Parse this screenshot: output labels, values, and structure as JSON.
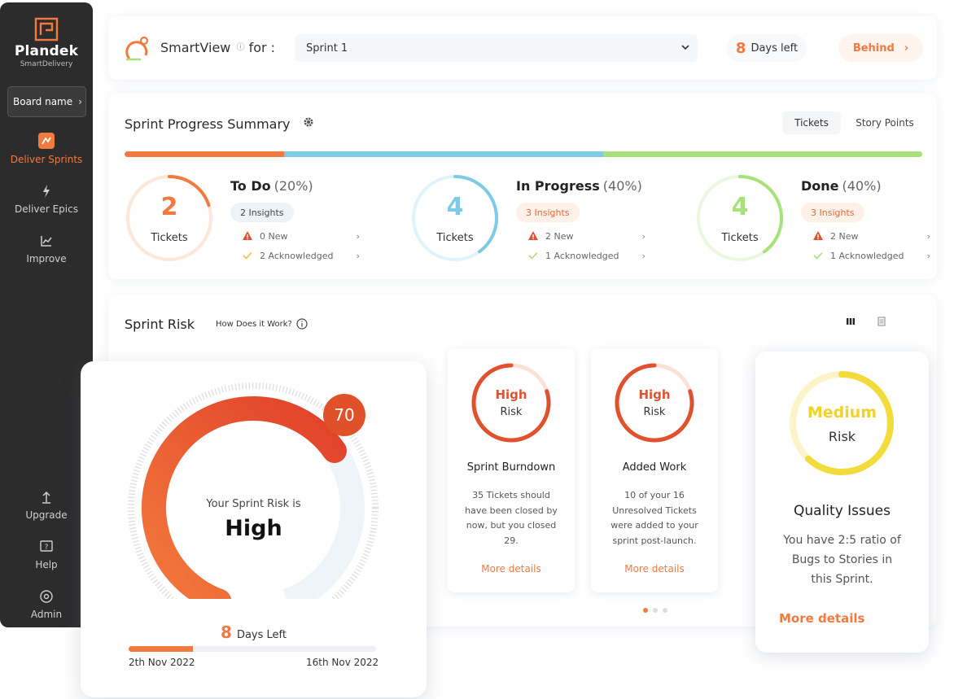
{
  "sidebar": {
    "logo_name": "Plandek",
    "logo_sub": "SmartDelivery",
    "board_button": "Board name",
    "items": [
      {
        "label": "Deliver Sprints",
        "icon": "sprint-icon",
        "active": true
      },
      {
        "label": "Deliver Epics",
        "icon": "lightning-icon",
        "active": false
      },
      {
        "label": "Improve",
        "icon": "chart-icon",
        "active": false
      }
    ],
    "bottom_items": [
      {
        "label": "Upgrade",
        "icon": "upgrade-icon"
      },
      {
        "label": "Help",
        "icon": "help-icon"
      },
      {
        "label": "Admin",
        "icon": "admin-icon"
      }
    ]
  },
  "header": {
    "title": "SmartView",
    "for_label": "for :",
    "sprint_selected": "Sprint 1",
    "days_left_num": "8",
    "days_left_label": "Days left",
    "status": "Behind"
  },
  "summary": {
    "title": "Sprint Progress Summary",
    "toggle_tickets": "Tickets",
    "toggle_points": "Story Points",
    "segments": [
      {
        "fraction": 0.2,
        "color": "#f07a3f"
      },
      {
        "fraction": 0.4,
        "color": "#7fcbe6"
      },
      {
        "fraction": 0.4,
        "color": "#a8e07a"
      }
    ],
    "statuses": [
      {
        "count": "2",
        "unit": "Tickets",
        "title": "To Do",
        "pct": "(20%)",
        "color": "#f07a3f",
        "track": "#fde6da",
        "arc": 0.2,
        "insights": "2 Insights",
        "insight_style": "neutral",
        "new": "0 New",
        "ack": "2 Acknowledged"
      },
      {
        "count": "4",
        "unit": "Tickets",
        "title": "In Progress",
        "pct": "(40%)",
        "color": "#7fcbe6",
        "track": "#e1f3fa",
        "arc": 0.4,
        "insights": "3 Insights",
        "insight_style": "warn",
        "new": "2 New",
        "ack": "1 Acknowledged"
      },
      {
        "count": "4",
        "unit": "Tickets",
        "title": "Done",
        "pct": "(40%)",
        "color": "#a8e07a",
        "track": "#ebf8e1",
        "arc": 0.4,
        "insights": "3 Insights",
        "insight_style": "warn",
        "new": "2 New",
        "ack": "1 Acknowledged"
      }
    ]
  },
  "risk": {
    "title": "Sprint Risk",
    "how": "How Does it Work?",
    "gauge": {
      "caption": "Your Sprint Risk is",
      "level": "High",
      "score": "70",
      "score_value": 70,
      "days_num": "8",
      "days_label": "Days Left",
      "elapsed_fraction": 0.26,
      "start_date": "2th Nov 2022",
      "end_date": "16th Nov 2022"
    },
    "cards": [
      {
        "level": "High",
        "word": "Risk",
        "name": "Sprint Burndown",
        "desc": [
          "35 Tickets should",
          "have been closed by",
          "now, but you closed",
          "29."
        ],
        "more": "More details",
        "fill": 0.8
      },
      {
        "level": "High",
        "word": "Risk",
        "name": "Added Work",
        "desc": [
          "10 of your 16",
          "Unresolved Tickets",
          "were added to your",
          "sprint post-launch."
        ],
        "more": "More details",
        "fill": 0.8
      }
    ],
    "quality": {
      "level": "Medium",
      "word": "Risk",
      "name": "Quality Issues",
      "desc": [
        "You have  2:5 ratio of",
        "Bugs to Stories in",
        "this Sprint."
      ],
      "more": "More details",
      "fill": 0.62
    }
  },
  "colors": {
    "accent": "#f07a3f",
    "risk_high": "#e0522e",
    "risk_medium": "#f0d22a"
  }
}
